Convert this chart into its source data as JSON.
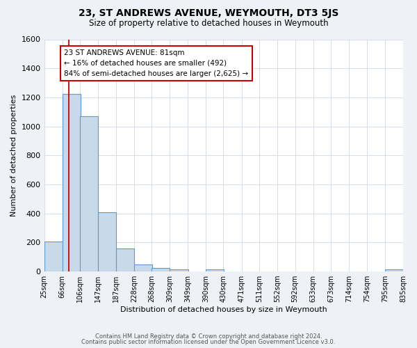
{
  "title": "23, ST ANDREWS AVENUE, WEYMOUTH, DT3 5JS",
  "subtitle": "Size of property relative to detached houses in Weymouth",
  "xlabel": "Distribution of detached houses by size in Weymouth",
  "ylabel": "Number of detached properties",
  "bar_left_edges": [
    25,
    66,
    106,
    147,
    187,
    228,
    268,
    309,
    349,
    390,
    430,
    471,
    511,
    552,
    592,
    633,
    673,
    714,
    754,
    795
  ],
  "bin_width": 41,
  "bar_heights": [
    205,
    1225,
    1070,
    410,
    160,
    50,
    25,
    15,
    0,
    15,
    0,
    0,
    0,
    0,
    0,
    0,
    0,
    0,
    0,
    15
  ],
  "bar_color": "#c8d9ea",
  "bar_edge_color": "#5b9bd5",
  "tick_labels": [
    "25sqm",
    "66sqm",
    "106sqm",
    "147sqm",
    "187sqm",
    "228sqm",
    "268sqm",
    "309sqm",
    "349sqm",
    "390sqm",
    "430sqm",
    "471sqm",
    "511sqm",
    "552sqm",
    "592sqm",
    "633sqm",
    "673sqm",
    "714sqm",
    "754sqm",
    "795sqm",
    "835sqm"
  ],
  "ylim": [
    0,
    1600
  ],
  "yticks": [
    0,
    200,
    400,
    600,
    800,
    1000,
    1200,
    1400,
    1600
  ],
  "red_line_x": 81,
  "annotation_title": "23 ST ANDREWS AVENUE: 81sqm",
  "annotation_line1": "← 16% of detached houses are smaller (492)",
  "annotation_line2": "84% of semi-detached houses are larger (2,625) →",
  "footer_line1": "Contains HM Land Registry data © Crown copyright and database right 2024.",
  "footer_line2": "Contains public sector information licensed under the Open Government Licence v3.0.",
  "bg_color": "#eef2f6",
  "plot_bg_color": "#ffffff",
  "grid_color": "#d0d8e4"
}
